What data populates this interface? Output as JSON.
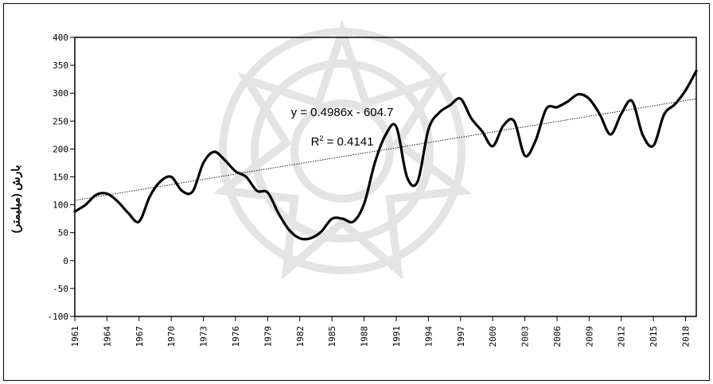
{
  "chart_data": {
    "type": "line",
    "title": "",
    "xlabel": "",
    "ylabel": "بارش (میلیمتر)",
    "y_tick_labels": [
      "400",
      "350",
      "300",
      "250",
      "200",
      "150",
      "100",
      "50",
      "0",
      "-50",
      "-100"
    ],
    "x_tick_labels": [
      "1961",
      "1964",
      "1967",
      "1970",
      "1973",
      "1976",
      "1979",
      "1982",
      "1985",
      "1988",
      "1991",
      "1994",
      "1997",
      "2000",
      "2003",
      "2006",
      "2009",
      "2012",
      "2015",
      "2018"
    ],
    "x": [
      1961,
      1962,
      1963,
      1964,
      1965,
      1966,
      1967,
      1968,
      1969,
      1970,
      1971,
      1972,
      1973,
      1974,
      1975,
      1976,
      1977,
      1978,
      1979,
      1980,
      1981,
      1982,
      1983,
      1984,
      1985,
      1986,
      1987,
      1988,
      1989,
      1990,
      1991,
      1992,
      1993,
      1994,
      1995,
      1996,
      1997,
      1998,
      1999,
      2000,
      2001,
      2002,
      2003,
      2004,
      2005,
      2006,
      2007,
      2008,
      2009,
      2010,
      2011,
      2012,
      2013,
      2014,
      2015,
      2016,
      2017,
      2018,
      2019
    ],
    "series": [
      {
        "values": [
          88,
          100,
          118,
          120,
          106,
          85,
          70,
          115,
          142,
          150,
          125,
          124,
          175,
          195,
          180,
          160,
          150,
          125,
          122,
          85,
          55,
          40,
          40,
          52,
          75,
          75,
          70,
          102,
          175,
          225,
          240,
          150,
          142,
          235,
          265,
          278,
          290,
          255,
          232,
          205,
          242,
          250,
          188,
          215,
          272,
          275,
          285,
          298,
          290,
          262,
          226,
          263,
          286,
          225,
          206,
          262,
          280,
          305,
          340
        ]
      }
    ],
    "trendline": {
      "equation": "y = 0.4986x - 604.7",
      "r2_label": "R",
      "r2_exp": "2",
      "r2_value": " = 0.4141",
      "slope": 0.4986,
      "intercept": -604.7,
      "r2": 0.4141
    },
    "ylim": [
      -100,
      400
    ],
    "xlim": [
      1961,
      2019
    ],
    "grid": false,
    "legend": "none"
  },
  "colors": {
    "line": "#000000",
    "trend": "#222222",
    "watermark": "#cccccc"
  }
}
